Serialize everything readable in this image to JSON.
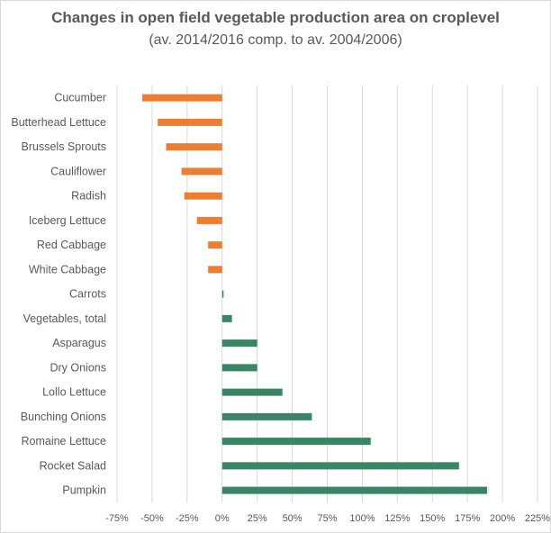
{
  "chart_data": {
    "type": "bar",
    "orientation": "horizontal",
    "title": "Changes in open field vegetable production area on croplevel",
    "subtitle": "(av. 2014/2016 comp. to av. 2004/2006)",
    "xlabel": "",
    "ylabel": "",
    "xlim": [
      -75,
      225
    ],
    "x_ticks": [
      -75,
      -50,
      -25,
      0,
      25,
      50,
      75,
      100,
      125,
      150,
      175,
      200,
      225
    ],
    "tick_suffix": "%",
    "grid": "vertical",
    "legend": "none",
    "colors": {
      "negative": "#ed7d31",
      "positive": "#3a8566"
    },
    "categories": [
      "Cucumber",
      "Butterhead Lettuce",
      "Brussels Sprouts",
      "Cauliflower",
      "Radish",
      "Iceberg Lettuce",
      "Red Cabbage",
      "White Cabbage",
      "Carrots",
      "Vegetables, total",
      "Asparagus",
      "Dry Onions",
      "Lollo Lettuce",
      "Bunching Onions",
      "Romaine Lettuce",
      "Rocket Salad",
      "Pumpkin"
    ],
    "values": [
      -57,
      -46,
      -40,
      -29,
      -27,
      -18,
      -10,
      -10,
      1,
      7,
      25,
      25,
      43,
      64,
      106,
      169,
      189
    ]
  }
}
